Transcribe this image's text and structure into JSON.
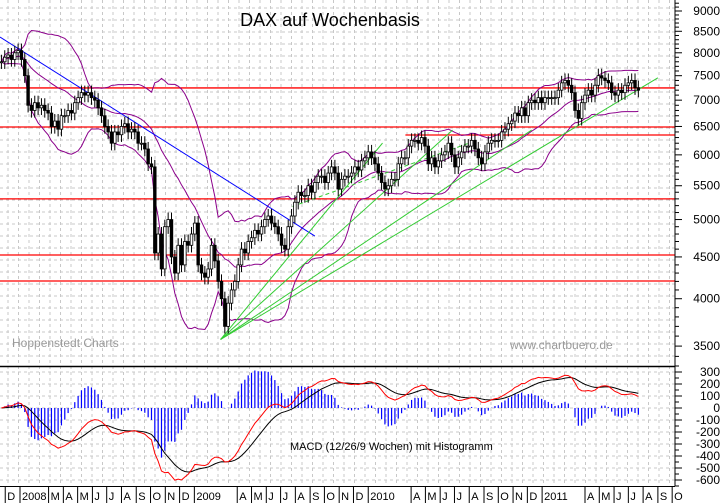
{
  "chart_data": {
    "type": "candlestick",
    "title": "DAX auf Wochenbasis",
    "watermarks": {
      "left": "Hoppenstedt Charts",
      "right": "www.chartbuero.de"
    },
    "y_scale": "log",
    "ylim": [
      3300,
      9300
    ],
    "y_ticks": [
      9000,
      8500,
      8000,
      7500,
      7000,
      6500,
      6000,
      5500,
      5000,
      4500,
      4000,
      3500
    ],
    "grid": true,
    "series": {
      "frequency": "weekly",
      "start_date": "2007-11-23",
      "close": [
        7800,
        7900,
        7950,
        7850,
        8000,
        8050,
        7850,
        7500,
        6900,
        6800,
        6950,
        6850,
        6900,
        6800,
        6750,
        6500,
        6600,
        6450,
        6700,
        6700,
        6800,
        6750,
        6950,
        7050,
        7150,
        7100,
        7150,
        7050,
        7000,
        6850,
        6700,
        6500,
        6400,
        6200,
        6400,
        6350,
        6500,
        6550,
        6400,
        6450,
        6400,
        6200,
        6200,
        6100,
        5850,
        5800,
        4550,
        4800,
        4350,
        4900,
        5000,
        4500,
        4300,
        4650,
        4400,
        4700,
        4650,
        4800,
        4950,
        4400,
        4300,
        4250,
        4350,
        4650,
        4450,
        4200,
        4000,
        3700,
        3950,
        4100,
        4200,
        4400,
        4600,
        4550,
        4700,
        4750,
        4850,
        4800,
        4900,
        5000,
        5050,
        4950,
        4900,
        4800,
        4650,
        4600,
        4900,
        5050,
        5250,
        5400,
        5350,
        5350,
        5500,
        5400,
        5550,
        5650,
        5650,
        5550,
        5700,
        5800,
        5700,
        5450,
        5600,
        5650,
        5650,
        5700,
        5800,
        5750,
        5900,
        5950,
        6050,
        5950,
        5850,
        5700,
        5550,
        5450,
        5500,
        5600,
        5600,
        5850,
        5950,
        5950,
        6150,
        6250,
        6250,
        6200,
        6300,
        6150,
        5850,
        5950,
        5800,
        5900,
        6000,
        6050,
        6200,
        6000,
        5800,
        5950,
        6050,
        6150,
        6150,
        6250,
        6100,
        5950,
        5850,
        6050,
        6200,
        6250,
        6250,
        6250,
        6400,
        6450,
        6550,
        6600,
        6750,
        6700,
        6850,
        6700,
        6950,
        7000,
        6950,
        7050,
        6950,
        7050,
        7050,
        7050,
        7050,
        7200,
        7350,
        7400,
        7300,
        7150,
        6800,
        6650,
        6950,
        7100,
        7200,
        7100,
        7300,
        7500,
        7450,
        7400,
        7350,
        7150,
        7100,
        7200,
        7150,
        7300,
        7350,
        7400,
        7250,
        7200
      ]
    },
    "bollinger": {
      "period": 20,
      "stddev": 2,
      "color": "#8b008b"
    },
    "horizontal_lines": [
      {
        "value": 7245,
        "color": "#ff0000"
      },
      {
        "value": 6490,
        "color": "#ff0000"
      },
      {
        "value": 6345,
        "color": "#ff0000",
        "from": "2010-03-20"
      },
      {
        "value": 5300,
        "color": "#ff0000"
      },
      {
        "value": 4525,
        "color": "#ff0000"
      },
      {
        "value": 4205,
        "color": "#ff0000"
      }
    ],
    "trend_lines": [
      {
        "color": "#0000ff",
        "from": [
          "2007-11-20",
          8364
        ],
        "to": [
          "2009-09-11",
          4773
        ]
      },
      {
        "color": "#33cc33",
        "from": [
          "2009-02-25",
          3566
        ],
        "to": [
          "2010-01-31",
          6203
        ]
      },
      {
        "color": "#33cc33",
        "from": [
          "2009-02-25",
          3566
        ],
        "to": [
          "2010-06-27",
          6434
        ]
      },
      {
        "color": "#33cc33",
        "from": [
          "2009-02-25",
          3566
        ],
        "to": [
          "2010-12-10",
          6434
        ]
      },
      {
        "color": "#33cc33",
        "from": [
          "2009-02-25",
          3566
        ],
        "to": [
          "2011-09-01",
          7455
        ]
      },
      {
        "color": "#33cc33",
        "dashed": true,
        "from": [
          "2009-07-26",
          5188
        ],
        "to": [
          "2010-08-01",
          6203
        ]
      }
    ],
    "macd": {
      "label": "MACD (12/26/9 Wochen) mit Histogramm",
      "fast": 12,
      "slow": 26,
      "signal": 9,
      "ylim": [
        -650,
        350
      ],
      "y_ticks": [
        300,
        200,
        100,
        0,
        -100,
        -200,
        -300,
        -400,
        -500,
        -600
      ],
      "macd_color": "#ff0000",
      "signal_color": "#000000",
      "histogram_color": "#0000ff"
    },
    "x_labels": [
      {
        "label": "D",
        "date": "2007-12-01"
      },
      {
        "label": "2008",
        "date": "2008-01-01"
      },
      {
        "label": "M",
        "date": "2008-03-01"
      },
      {
        "label": "A",
        "date": "2008-04-01"
      },
      {
        "label": "M",
        "date": "2008-05-01"
      },
      {
        "label": "J",
        "date": "2008-06-01"
      },
      {
        "label": "J",
        "date": "2008-07-01"
      },
      {
        "label": "A",
        "date": "2008-08-01"
      },
      {
        "label": "S",
        "date": "2008-09-01"
      },
      {
        "label": "O",
        "date": "2008-10-01"
      },
      {
        "label": "N",
        "date": "2008-11-01"
      },
      {
        "label": "D",
        "date": "2008-12-01"
      },
      {
        "label": "2009",
        "date": "2009-01-01"
      },
      {
        "label": "A",
        "date": "2009-04-01"
      },
      {
        "label": "M",
        "date": "2009-05-01"
      },
      {
        "label": "J",
        "date": "2009-06-01"
      },
      {
        "label": "J",
        "date": "2009-07-01"
      },
      {
        "label": "A",
        "date": "2009-08-01"
      },
      {
        "label": "S",
        "date": "2009-09-01"
      },
      {
        "label": "O",
        "date": "2009-10-01"
      },
      {
        "label": "N",
        "date": "2009-11-01"
      },
      {
        "label": "D",
        "date": "2009-12-01"
      },
      {
        "label": "2010",
        "date": "2010-01-01"
      },
      {
        "label": "A",
        "date": "2010-04-01"
      },
      {
        "label": "M",
        "date": "2010-05-01"
      },
      {
        "label": "J",
        "date": "2010-06-01"
      },
      {
        "label": "J",
        "date": "2010-07-01"
      },
      {
        "label": "A",
        "date": "2010-08-01"
      },
      {
        "label": "S",
        "date": "2010-09-01"
      },
      {
        "label": "O",
        "date": "2010-10-01"
      },
      {
        "label": "N",
        "date": "2010-11-01"
      },
      {
        "label": "D",
        "date": "2010-12-01"
      },
      {
        "label": "2011",
        "date": "2011-01-01"
      },
      {
        "label": "A",
        "date": "2011-04-01"
      },
      {
        "label": "M",
        "date": "2011-05-01"
      },
      {
        "label": "J",
        "date": "2011-06-01"
      },
      {
        "label": "J",
        "date": "2011-07-01"
      },
      {
        "label": "A",
        "date": "2011-08-01"
      },
      {
        "label": "S",
        "date": "2011-09-01"
      },
      {
        "label": "O",
        "date": "2011-10-01"
      }
    ]
  }
}
